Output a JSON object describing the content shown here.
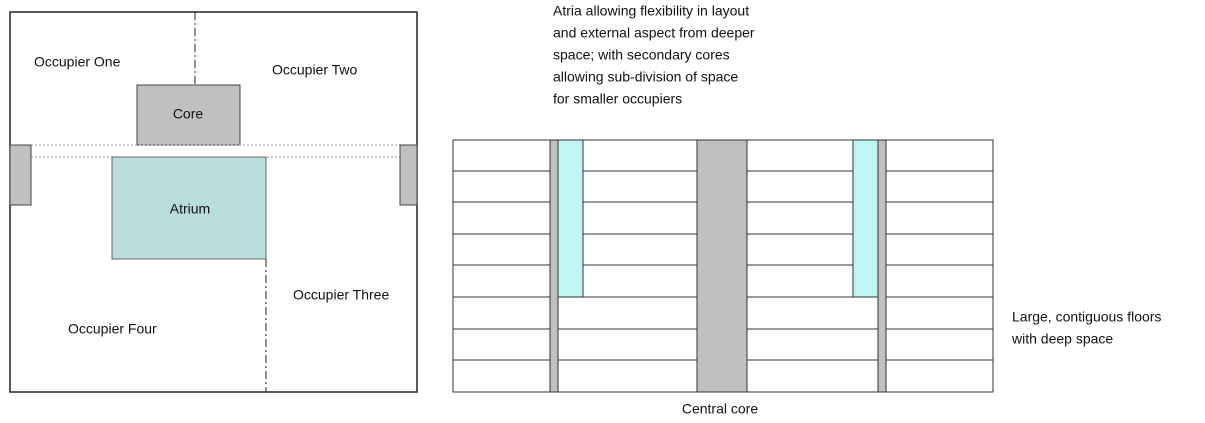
{
  "plan": {
    "occupier_one": "Occupier One",
    "occupier_two": "Occupier Two",
    "core": "Core",
    "atrium": "Atrium",
    "occupier_three": "Occupier Three",
    "occupier_four": "Occupier Four"
  },
  "section": {
    "annotation": [
      "Atria allowing flexibility in layout",
      "and external aspect from deeper",
      "space; with secondary cores",
      "allowing sub-division of space",
      "for smaller occupiers"
    ],
    "side_note": [
      "Large, contiguous floors",
      "with deep space"
    ],
    "central_core": "Central core"
  }
}
